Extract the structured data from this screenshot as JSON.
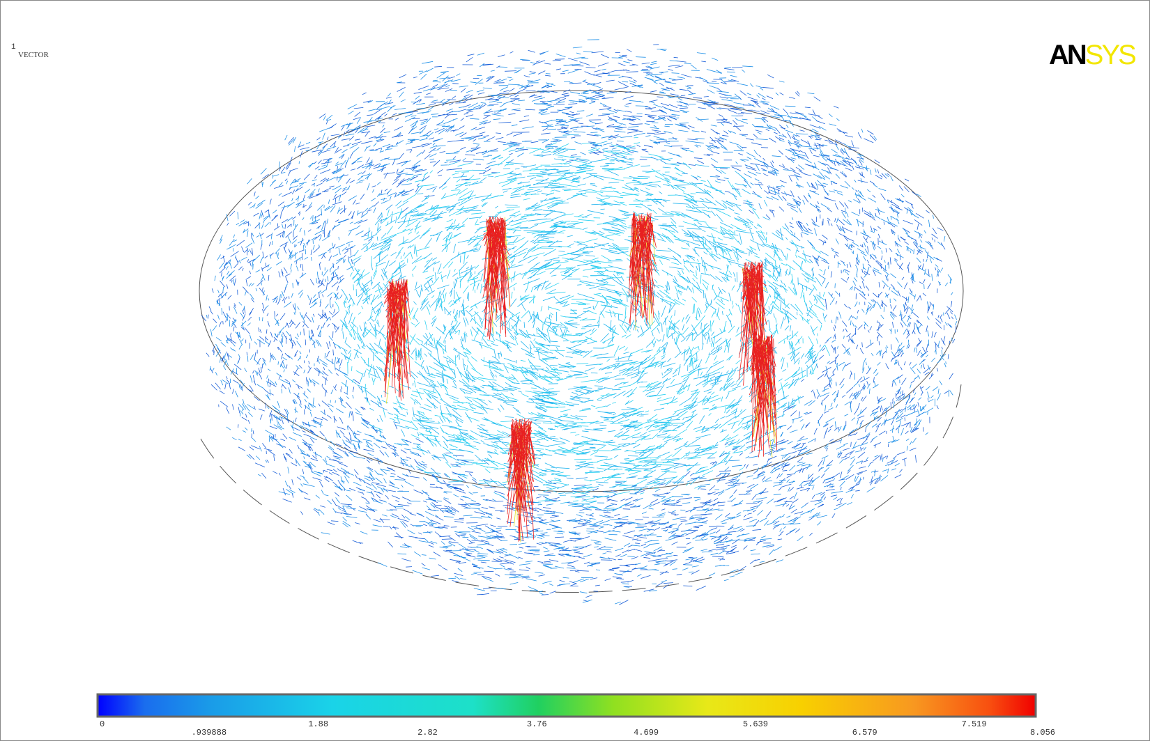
{
  "window": {
    "number": "1",
    "label": "VECTOR"
  },
  "logo": {
    "dark": "AN",
    "light": "SYS"
  },
  "legend": {
    "labels": [
      "0",
      ".939888",
      "1.88",
      "2.82",
      "3.76",
      "4.699",
      "5.639",
      "6.579",
      "7.519",
      "8.056"
    ]
  }
}
